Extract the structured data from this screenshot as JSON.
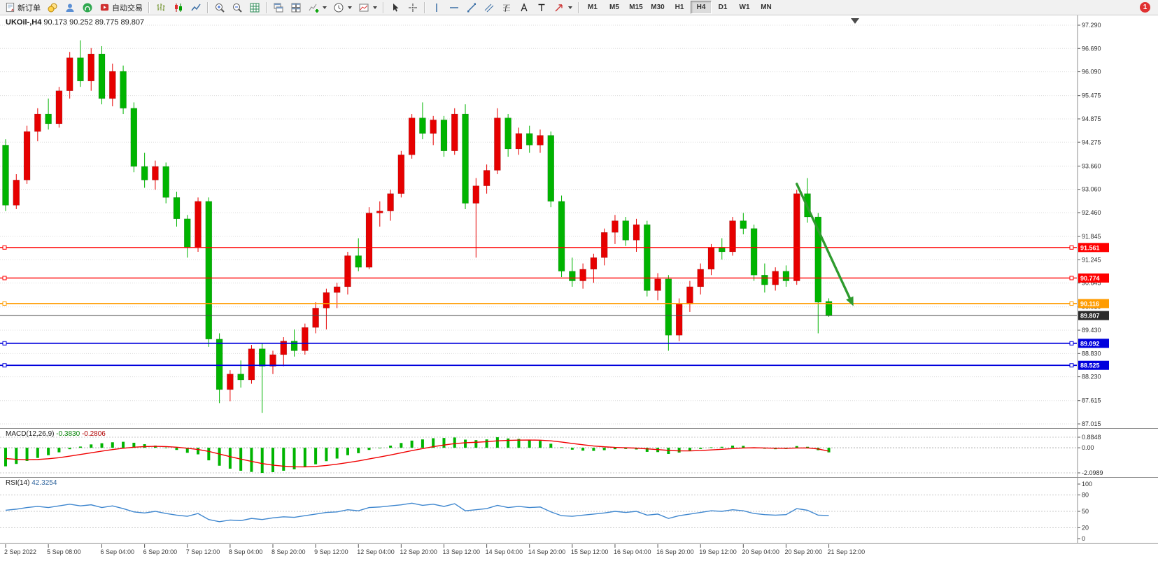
{
  "toolbar": {
    "new_order": "新订单",
    "autotrading": "自动交易",
    "timeframes": [
      "M1",
      "M5",
      "M15",
      "M30",
      "H1",
      "H4",
      "D1",
      "W1",
      "MN"
    ],
    "active_timeframe": "H4",
    "notification_badge": "1",
    "icon_names": [
      "new-order-icon",
      "coins-icon",
      "user-icon",
      "headset-icon",
      "autotrading-icon",
      "bar-chart-icon",
      "candlestick-chart-icon",
      "line-chart-icon",
      "zoom-in-icon",
      "zoom-out-icon",
      "grid-icon",
      "cascade-windows-icon",
      "tile-windows-icon",
      "indicators-icon",
      "periods-icon",
      "templates-icon",
      "cursor-icon",
      "crosshair-icon",
      "vertical-line-icon",
      "horizontal-line-icon",
      "trendline-icon",
      "channel-icon",
      "fibonacci-icon",
      "text-icon",
      "label-icon",
      "shapes-icon"
    ]
  },
  "chart_header": {
    "symbol_period": "UKOil-,H4",
    "ohlc": "90.173 90.252 89.775 89.807"
  },
  "macd_header": {
    "name": "MACD(12,26,9)",
    "main_value": "-0.3830",
    "signal_value": "-0.2806"
  },
  "rsi_header": {
    "name": "RSI(14)",
    "value": "42.3254"
  },
  "chart_data": [
    {
      "type": "candlestick",
      "symbol": "UKOil-",
      "period": "H4",
      "current_ohlc": {
        "open": 90.173,
        "high": 90.252,
        "low": 89.775,
        "close": 89.807
      },
      "ylim": [
        87.015,
        97.29
      ],
      "price_ticks": [
        "97.290",
        "96.690",
        "96.090",
        "95.475",
        "94.875",
        "94.275",
        "93.660",
        "93.060",
        "92.460",
        "91.845",
        "91.245",
        "90.645",
        "90.030",
        "89.430",
        "88.830",
        "88.230",
        "87.615",
        "87.015"
      ],
      "up_color": "#e60000",
      "down_color": "#00b400",
      "candles": [
        [
          94.2,
          94.35,
          92.5,
          92.65
        ],
        [
          92.65,
          93.45,
          92.55,
          93.3
        ],
        [
          93.3,
          94.7,
          93.2,
          94.55
        ],
        [
          94.55,
          95.15,
          94.3,
          95.0
        ],
        [
          95.0,
          95.4,
          94.6,
          94.75
        ],
        [
          94.75,
          95.7,
          94.65,
          95.6
        ],
        [
          95.6,
          96.6,
          95.4,
          96.45
        ],
        [
          96.45,
          96.9,
          95.7,
          95.85
        ],
        [
          95.85,
          96.7,
          95.6,
          96.55
        ],
        [
          96.55,
          96.75,
          95.25,
          95.4
        ],
        [
          95.4,
          96.3,
          95.2,
          96.1
        ],
        [
          96.1,
          96.25,
          95.0,
          95.15
        ],
        [
          95.15,
          95.3,
          93.5,
          93.65
        ],
        [
          93.65,
          94.0,
          93.1,
          93.3
        ],
        [
          93.3,
          93.8,
          93.05,
          93.65
        ],
        [
          93.65,
          93.75,
          92.7,
          92.85
        ],
        [
          92.85,
          93.0,
          92.1,
          92.3
        ],
        [
          92.3,
          92.4,
          91.3,
          91.55
        ],
        [
          91.55,
          92.85,
          91.45,
          92.75
        ],
        [
          92.75,
          92.85,
          89.0,
          89.2
        ],
        [
          89.2,
          89.35,
          87.55,
          87.9
        ],
        [
          87.9,
          88.4,
          87.6,
          88.3
        ],
        [
          88.3,
          88.65,
          87.95,
          88.15
        ],
        [
          88.15,
          89.05,
          88.05,
          88.95
        ],
        [
          88.95,
          89.1,
          87.3,
          88.5
        ],
        [
          88.5,
          88.9,
          88.3,
          88.8
        ],
        [
          88.8,
          89.25,
          88.5,
          89.15
        ],
        [
          89.15,
          89.45,
          88.75,
          88.9
        ],
        [
          88.9,
          89.6,
          88.8,
          89.5
        ],
        [
          89.5,
          90.15,
          89.35,
          90.0
        ],
        [
          90.0,
          90.5,
          89.45,
          90.4
        ],
        [
          90.4,
          90.65,
          90.0,
          90.55
        ],
        [
          90.55,
          91.45,
          90.35,
          91.35
        ],
        [
          91.35,
          91.8,
          90.95,
          91.05
        ],
        [
          91.05,
          92.6,
          91.0,
          92.45
        ],
        [
          92.45,
          92.75,
          92.1,
          92.5
        ],
        [
          92.5,
          93.05,
          92.25,
          92.95
        ],
        [
          92.95,
          94.05,
          92.85,
          93.95
        ],
        [
          93.95,
          95.0,
          93.85,
          94.9
        ],
        [
          94.9,
          95.3,
          94.35,
          94.5
        ],
        [
          94.5,
          94.95,
          94.2,
          94.85
        ],
        [
          94.85,
          94.95,
          93.9,
          94.05
        ],
        [
          94.05,
          95.15,
          93.95,
          95.0
        ],
        [
          95.0,
          95.25,
          92.55,
          92.7
        ],
        [
          92.7,
          93.35,
          91.3,
          93.15
        ],
        [
          93.15,
          93.7,
          92.95,
          93.55
        ],
        [
          93.55,
          95.15,
          93.45,
          94.9
        ],
        [
          94.9,
          95.0,
          93.9,
          94.1
        ],
        [
          94.1,
          94.65,
          93.95,
          94.5
        ],
        [
          94.5,
          94.7,
          94.0,
          94.2
        ],
        [
          94.2,
          94.6,
          94.0,
          94.45
        ],
        [
          94.45,
          94.55,
          92.6,
          92.75
        ],
        [
          92.75,
          92.9,
          90.8,
          90.95
        ],
        [
          90.95,
          91.3,
          90.55,
          90.7
        ],
        [
          90.7,
          91.15,
          90.5,
          91.0
        ],
        [
          91.0,
          91.4,
          90.65,
          91.3
        ],
        [
          91.3,
          92.05,
          91.1,
          91.95
        ],
        [
          91.95,
          92.4,
          91.65,
          92.25
        ],
        [
          92.25,
          92.35,
          91.6,
          91.75
        ],
        [
          91.75,
          92.3,
          91.45,
          92.15
        ],
        [
          92.15,
          92.25,
          90.3,
          90.45
        ],
        [
          90.45,
          90.9,
          90.2,
          90.75
        ],
        [
          90.75,
          90.85,
          88.9,
          89.3
        ],
        [
          89.3,
          90.25,
          89.15,
          90.1
        ],
        [
          90.1,
          90.7,
          89.9,
          90.55
        ],
        [
          90.55,
          91.15,
          90.35,
          91.0
        ],
        [
          91.0,
          91.65,
          90.85,
          91.55
        ],
        [
          91.55,
          91.8,
          91.25,
          91.45
        ],
        [
          91.45,
          92.35,
          91.35,
          92.25
        ],
        [
          92.25,
          92.45,
          91.9,
          92.05
        ],
        [
          92.05,
          92.15,
          90.7,
          90.85
        ],
        [
          90.85,
          91.15,
          90.4,
          90.6
        ],
        [
          90.6,
          91.05,
          90.45,
          90.95
        ],
        [
          90.95,
          91.1,
          90.55,
          90.7
        ],
        [
          90.7,
          93.05,
          90.6,
          92.95
        ],
        [
          92.95,
          93.35,
          92.2,
          92.35
        ],
        [
          92.35,
          92.45,
          89.35,
          90.15
        ],
        [
          90.173,
          90.252,
          89.775,
          89.807
        ]
      ],
      "hlines": [
        {
          "price": 91.561,
          "label": "91.561",
          "color": "#ff0000",
          "width": 1.4
        },
        {
          "price": 90.774,
          "label": "90.774",
          "color": "#ff0000",
          "width": 1.4
        },
        {
          "price": 90.116,
          "label": "90.116",
          "color": "#ff9c00",
          "width": 1.8
        },
        {
          "price": 89.092,
          "label": "89.092",
          "color": "#0000dd",
          "width": 1.8
        },
        {
          "price": 88.525,
          "label": "88.525",
          "color": "#0000dd",
          "width": 1.8
        }
      ],
      "bid_line": {
        "price": 89.807,
        "label": "89.807",
        "color": "#2b2b2b"
      },
      "time_labels": [
        [
          0,
          "2 Sep 2022"
        ],
        [
          4,
          "5 Sep 08:00"
        ],
        [
          9,
          "6 Sep 04:00"
        ],
        [
          13,
          "6 Sep 20:00"
        ],
        [
          17,
          "7 Sep 12:00"
        ],
        [
          21,
          "8 Sep 04:00"
        ],
        [
          25,
          "8 Sep 20:00"
        ],
        [
          29,
          "9 Sep 12:00"
        ],
        [
          33,
          "12 Sep 04:00"
        ],
        [
          37,
          "12 Sep 20:00"
        ],
        [
          41,
          "13 Sep 12:00"
        ],
        [
          45,
          "14 Sep 04:00"
        ],
        [
          49,
          "14 Sep 20:00"
        ],
        [
          53,
          "15 Sep 12:00"
        ],
        [
          57,
          "16 Sep 04:00"
        ],
        [
          61,
          "16 Sep 20:00"
        ],
        [
          65,
          "19 Sep 12:00"
        ],
        [
          69,
          "20 Sep 04:00"
        ],
        [
          73,
          "20 Sep 20:00"
        ],
        [
          77,
          "21 Sep 12:00"
        ]
      ],
      "arrow": {
        "from_index": 74,
        "from_price": 93.2,
        "to_index": 79.3,
        "to_price": 90.05,
        "color": "#2e9b2e"
      }
    },
    {
      "type": "histogram_line",
      "name": "MACD",
      "params": "(12,26,9)",
      "main_value": -0.383,
      "signal_value": -0.2806,
      "ylim": [
        -2.0989,
        0.8848
      ],
      "ticks": [
        "0.8848",
        "0.00",
        "-2.0989"
      ],
      "hist_color": "#00b400",
      "signal_color": "#f00000",
      "hist": [
        -1.55,
        -1.35,
        -1.1,
        -0.85,
        -0.62,
        -0.38,
        -0.12,
        0.1,
        0.28,
        0.38,
        0.46,
        0.5,
        0.42,
        0.3,
        0.18,
        0.02,
        -0.18,
        -0.42,
        -0.55,
        -1.05,
        -1.5,
        -1.75,
        -1.92,
        -2.02,
        -2.1,
        -2.04,
        -1.92,
        -1.8,
        -1.62,
        -1.38,
        -1.12,
        -0.9,
        -0.62,
        -0.45,
        -0.18,
        0.0,
        0.18,
        0.4,
        0.6,
        0.7,
        0.8,
        0.82,
        0.86,
        0.68,
        0.64,
        0.7,
        0.88,
        0.78,
        0.74,
        0.66,
        0.58,
        0.34,
        0.04,
        -0.16,
        -0.24,
        -0.26,
        -0.2,
        -0.12,
        -0.1,
        -0.14,
        -0.34,
        -0.36,
        -0.52,
        -0.4,
        -0.26,
        -0.1,
        0.04,
        0.08,
        0.18,
        0.16,
        0.04,
        -0.08,
        -0.12,
        -0.1,
        0.14,
        0.08,
        -0.2,
        -0.383
      ],
      "signal": [
        -0.9,
        -0.97,
        -1.0,
        -0.98,
        -0.92,
        -0.83,
        -0.7,
        -0.56,
        -0.42,
        -0.28,
        -0.15,
        -0.04,
        0.05,
        0.1,
        0.12,
        0.1,
        0.05,
        -0.04,
        -0.14,
        -0.3,
        -0.52,
        -0.74,
        -0.95,
        -1.14,
        -1.32,
        -1.45,
        -1.54,
        -1.59,
        -1.6,
        -1.56,
        -1.48,
        -1.37,
        -1.24,
        -1.1,
        -0.93,
        -0.77,
        -0.6,
        -0.42,
        -0.24,
        -0.07,
        0.09,
        0.23,
        0.35,
        0.42,
        0.46,
        0.51,
        0.58,
        0.62,
        0.64,
        0.65,
        0.63,
        0.58,
        0.48,
        0.36,
        0.25,
        0.15,
        0.08,
        0.03,
        0.0,
        -0.03,
        -0.09,
        -0.15,
        -0.22,
        -0.26,
        -0.26,
        -0.23,
        -0.18,
        -0.13,
        -0.07,
        -0.02,
        0.0,
        -0.02,
        -0.04,
        -0.05,
        -0.02,
        -0.01,
        -0.1,
        -0.2806
      ]
    },
    {
      "type": "line",
      "name": "RSI",
      "params": "(14)",
      "value": 42.3254,
      "ylim": [
        0,
        100
      ],
      "levels": [
        80,
        50,
        20
      ],
      "ticks": [
        "100",
        "80",
        "50",
        "20",
        "0"
      ],
      "color": "#3f87cf",
      "values": [
        52,
        54,
        57,
        59,
        57,
        60,
        63,
        60,
        62,
        57,
        60,
        55,
        49,
        47,
        50,
        46,
        43,
        41,
        46,
        35,
        31,
        34,
        33,
        37,
        35,
        38,
        40,
        39,
        42,
        45,
        48,
        49,
        53,
        51,
        57,
        58,
        60,
        62,
        65,
        61,
        63,
        59,
        64,
        51,
        53,
        55,
        61,
        57,
        59,
        57,
        58,
        49,
        42,
        41,
        43,
        45,
        47,
        50,
        48,
        50,
        43,
        45,
        37,
        42,
        45,
        48,
        51,
        50,
        53,
        51,
        46,
        44,
        43,
        44,
        55,
        52,
        43,
        42.33
      ]
    }
  ]
}
